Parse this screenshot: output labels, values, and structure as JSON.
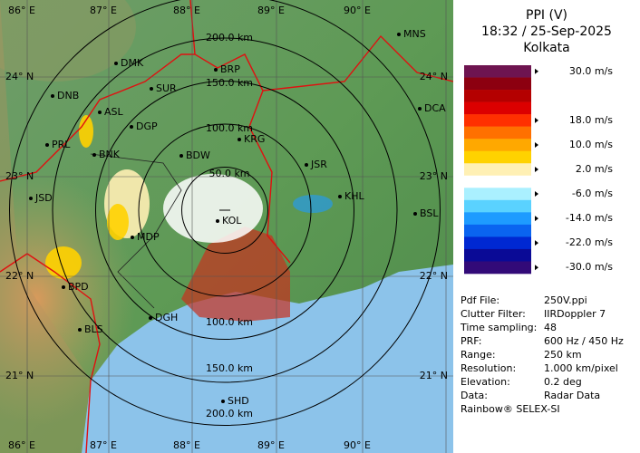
{
  "map": {
    "lon_labels_top": [
      "86° E",
      "87° E",
      "88° E",
      "89° E",
      "90° E"
    ],
    "lon_labels_bottom": [
      "86° E",
      "87° E",
      "88° E",
      "89° E",
      "90° E"
    ],
    "lat_labels_left": [
      "24° N",
      "23° N",
      "22° N",
      "21° N"
    ],
    "lat_labels_right": [
      "24° N",
      "23° N",
      "22° N",
      "21° N"
    ],
    "ring_labels_top": [
      "200.0 km",
      "150.0 km",
      "100.0 km",
      "50.0 km"
    ],
    "ring_labels_bottom": [
      "100.0 km",
      "150.0 km",
      "200.0 km"
    ],
    "cities": [
      "MNS",
      "DMK",
      "BRP",
      "DNB",
      "SUR",
      "DCA",
      "ASL",
      "DGP",
      "KRG",
      "PRL",
      "BNK",
      "BDW",
      "JSR",
      "JSD",
      "KHL",
      "MDP",
      "KOL",
      "BSL",
      "BPD",
      "DGH",
      "BLS",
      "SHD"
    ]
  },
  "panel": {
    "title": "PPI (V)",
    "datetime": "18:32 / 25-Sep-2025",
    "station": "Kolkata",
    "legend": [
      {
        "color": "#6e1450",
        "label": "30.0 m/s"
      },
      {
        "color": "#8c0010"
      },
      {
        "color": "#b40000"
      },
      {
        "color": "#dc0000"
      },
      {
        "color": "#ff3000",
        "label": "18.0 m/s"
      },
      {
        "color": "#ff7000"
      },
      {
        "color": "#ffa800",
        "label": "10.0 m/s"
      },
      {
        "color": "#ffd200"
      },
      {
        "color": "#fff0b4",
        "label": "2.0 m/s"
      },
      {
        "color": "#ffffff"
      },
      {
        "color": "#aaf0ff",
        "label": "-6.0 m/s"
      },
      {
        "color": "#5ad2ff"
      },
      {
        "color": "#1e9bff",
        "label": "-14.0 m/s"
      },
      {
        "color": "#0a64f0"
      },
      {
        "color": "#0028d2",
        "label": "-22.0 m/s"
      },
      {
        "color": "#0a0a96"
      },
      {
        "color": "#320a78",
        "label": "-30.0 m/s"
      }
    ],
    "info": [
      [
        "Pdf File:",
        "250V.ppi"
      ],
      [
        "Clutter Filter:",
        "IIRDoppler 7"
      ],
      [
        "Time sampling:",
        "48"
      ],
      [
        "PRF:",
        "600 Hz / 450 Hz"
      ],
      [
        "Range:",
        "250 km"
      ],
      [
        "Resolution:",
        "1.000 km/pixel"
      ],
      [
        "Elevation:",
        "0.2 deg"
      ],
      [
        "Data:",
        "Radar Data"
      ]
    ],
    "footer": "Rainbow® SELEX-SI"
  }
}
